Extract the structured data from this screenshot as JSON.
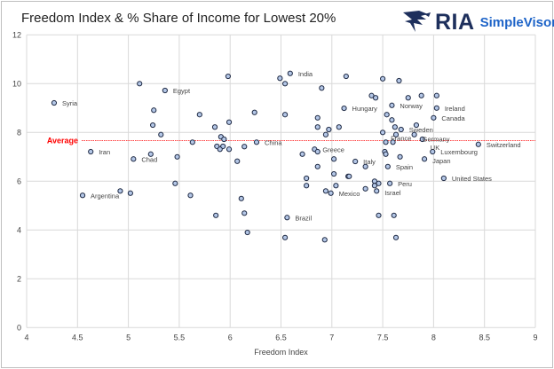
{
  "chart_data": {
    "type": "scatter",
    "title": "Freedom Index & % Share of Income for Lowest 20%",
    "xlabel": "Freedom Index",
    "ylabel": "",
    "xlim": [
      4,
      9
    ],
    "ylim": [
      0,
      12
    ],
    "xticks": [
      4,
      4.5,
      5,
      5.5,
      6,
      6.5,
      7,
      7.5,
      8,
      8.5,
      9
    ],
    "yticks": [
      0,
      2,
      4,
      6,
      8,
      10,
      12
    ],
    "grid": true,
    "marker_fill": "#b4c7e7",
    "marker_edge": "#1f2a44",
    "highlight_color": "#ff0000",
    "average": {
      "label": "Average",
      "value": 7.66,
      "color": "#ff0000"
    },
    "points": [
      {
        "x": 5.98,
        "y": 10.3
      },
      {
        "x": 5.11,
        "y": 10.0
      },
      {
        "x": 5.36,
        "y": 9.72,
        "label": "Egypt"
      },
      {
        "x": 4.27,
        "y": 9.21,
        "label": "Syria"
      },
      {
        "x": 5.25,
        "y": 8.91
      },
      {
        "x": 5.7,
        "y": 8.73
      },
      {
        "x": 6.24,
        "y": 8.82
      },
      {
        "x": 5.24,
        "y": 8.3
      },
      {
        "x": 5.85,
        "y": 8.22
      },
      {
        "x": 5.99,
        "y": 8.42
      },
      {
        "x": 5.32,
        "y": 7.91
      },
      {
        "x": 5.91,
        "y": 7.82
      },
      {
        "x": 5.94,
        "y": 7.72
      },
      {
        "x": 5.63,
        "y": 7.6
      },
      {
        "x": 6.26,
        "y": 7.6,
        "label": "China"
      },
      {
        "x": 5.87,
        "y": 7.43
      },
      {
        "x": 5.93,
        "y": 7.43
      },
      {
        "x": 5.9,
        "y": 7.31
      },
      {
        "x": 5.99,
        "y": 7.31
      },
      {
        "x": 6.14,
        "y": 7.42
      },
      {
        "x": 4.63,
        "y": 7.21,
        "label": "Iran"
      },
      {
        "x": 5.22,
        "y": 7.11
      },
      {
        "x": 5.05,
        "y": 6.91,
        "label": "Chad"
      },
      {
        "x": 5.48,
        "y": 7.0
      },
      {
        "x": 6.07,
        "y": 6.82
      },
      {
        "x": 5.46,
        "y": 5.91
      },
      {
        "x": 4.92,
        "y": 5.6
      },
      {
        "x": 5.02,
        "y": 5.51
      },
      {
        "x": 4.55,
        "y": 5.42,
        "label": "Argentina"
      },
      {
        "x": 5.61,
        "y": 5.42
      },
      {
        "x": 6.11,
        "y": 5.29
      },
      {
        "x": 6.14,
        "y": 4.69
      },
      {
        "x": 5.86,
        "y": 4.6
      },
      {
        "x": 6.17,
        "y": 3.9
      },
      {
        "x": 6.59,
        "y": 10.42,
        "label": "India"
      },
      {
        "x": 6.49,
        "y": 10.22
      },
      {
        "x": 6.54,
        "y": 10.0
      },
      {
        "x": 7.14,
        "y": 10.3
      },
      {
        "x": 7.5,
        "y": 10.2
      },
      {
        "x": 7.66,
        "y": 10.12
      },
      {
        "x": 6.9,
        "y": 9.82
      },
      {
        "x": 7.39,
        "y": 9.51
      },
      {
        "x": 7.43,
        "y": 9.42
      },
      {
        "x": 7.75,
        "y": 9.42
      },
      {
        "x": 7.88,
        "y": 9.51
      },
      {
        "x": 7.12,
        "y": 8.99,
        "label": "Hungary"
      },
      {
        "x": 7.59,
        "y": 9.11,
        "label": "Norway"
      },
      {
        "x": 6.54,
        "y": 8.73
      },
      {
        "x": 6.86,
        "y": 8.6
      },
      {
        "x": 7.54,
        "y": 8.73
      },
      {
        "x": 7.59,
        "y": 8.51
      },
      {
        "x": 6.86,
        "y": 8.22
      },
      {
        "x": 6.97,
        "y": 8.12
      },
      {
        "x": 7.07,
        "y": 8.22
      },
      {
        "x": 6.94,
        "y": 7.91
      },
      {
        "x": 7.62,
        "y": 8.22
      },
      {
        "x": 7.68,
        "y": 8.12,
        "label": "Sweden"
      },
      {
        "x": 7.83,
        "y": 8.3
      },
      {
        "x": 7.5,
        "y": 8.0,
        "label": "France"
      },
      {
        "x": 7.63,
        "y": 7.91
      },
      {
        "x": 7.81,
        "y": 7.91,
        "label": "Germany"
      },
      {
        "x": 7.53,
        "y": 7.6
      },
      {
        "x": 7.6,
        "y": 7.6
      },
      {
        "x": 7.89,
        "y": 7.72,
        "label": "UK"
      },
      {
        "x": 6.83,
        "y": 7.31,
        "label": "Greece"
      },
      {
        "x": 6.86,
        "y": 7.21
      },
      {
        "x": 6.71,
        "y": 7.11
      },
      {
        "x": 7.02,
        "y": 6.91
      },
      {
        "x": 7.52,
        "y": 7.21
      },
      {
        "x": 7.53,
        "y": 7.11
      },
      {
        "x": 7.67,
        "y": 7.0
      },
      {
        "x": 7.23,
        "y": 6.81,
        "label": "Italy"
      },
      {
        "x": 7.33,
        "y": 6.6
      },
      {
        "x": 6.86,
        "y": 6.6
      },
      {
        "x": 7.55,
        "y": 6.6,
        "label": "Spain"
      },
      {
        "x": 7.02,
        "y": 6.3
      },
      {
        "x": 7.16,
        "y": 6.2
      },
      {
        "x": 7.17,
        "y": 6.2
      },
      {
        "x": 6.75,
        "y": 6.12
      },
      {
        "x": 6.75,
        "y": 5.82
      },
      {
        "x": 7.04,
        "y": 5.82
      },
      {
        "x": 7.42,
        "y": 6.0
      },
      {
        "x": 7.46,
        "y": 5.91
      },
      {
        "x": 7.57,
        "y": 5.91,
        "label": "Peru"
      },
      {
        "x": 7.42,
        "y": 5.82
      },
      {
        "x": 7.33,
        "y": 5.69
      },
      {
        "x": 7.44,
        "y": 5.6,
        "label": "Israel"
      },
      {
        "x": 6.94,
        "y": 5.6
      },
      {
        "x": 6.99,
        "y": 5.51,
        "label": "Mexico"
      },
      {
        "x": 6.56,
        "y": 4.51,
        "label": "Brazil"
      },
      {
        "x": 7.46,
        "y": 4.6
      },
      {
        "x": 7.61,
        "y": 4.6
      },
      {
        "x": 6.54,
        "y": 3.69
      },
      {
        "x": 6.93,
        "y": 3.6
      },
      {
        "x": 7.63,
        "y": 3.69
      },
      {
        "x": 8.03,
        "y": 9.0,
        "label": "Ireland"
      },
      {
        "x": 8.03,
        "y": 9.51
      },
      {
        "x": 8.0,
        "y": 8.6,
        "label": "Canada"
      },
      {
        "x": 7.99,
        "y": 7.21,
        "label": "Luxembourg"
      },
      {
        "x": 7.91,
        "y": 6.91,
        "label": "Japan"
      },
      {
        "x": 8.44,
        "y": 7.51,
        "label": "Switzerland"
      },
      {
        "x": 8.1,
        "y": 6.12,
        "label": "United States",
        "highlight": true
      }
    ]
  },
  "logo": {
    "text": "RIA",
    "subtext": "SimpleVisor"
  }
}
